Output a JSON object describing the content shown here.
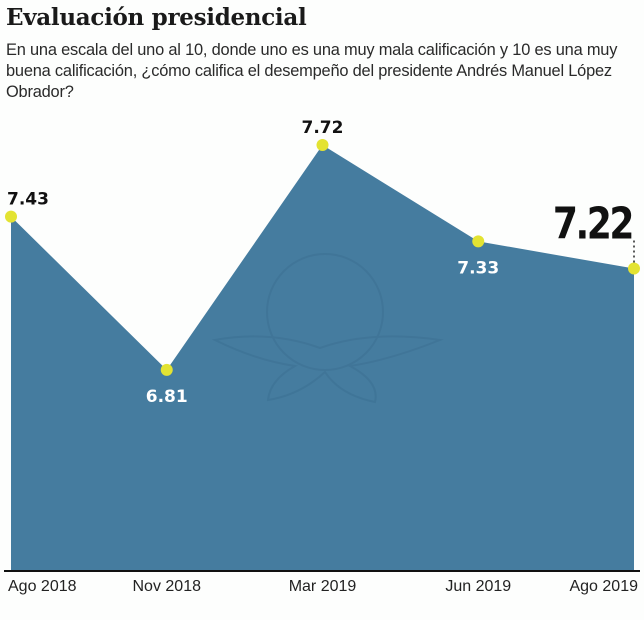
{
  "header": {
    "title": "Evaluación presidencial",
    "subtitle": "En una escala del uno al 10, donde uno es una muy mala calificación y 10 es una muy buena calificación, ¿cómo califica el desempeño del presidente Andrés Manuel López Obrador?"
  },
  "colors": {
    "area_fill": "#457c9f",
    "point": "#e3e332",
    "text_dark": "#111111",
    "text_light": "#ffffff",
    "baseline": "#111111"
  },
  "chart_data": {
    "type": "area",
    "title": "Evaluación presidencial",
    "subtitle": "En una escala del uno al 10, donde uno es una muy mala calificación y 10 es una muy buena calificación, ¿cómo califica el desempeño del presidente Andrés Manuel López Obrador?",
    "xlabel": "",
    "ylabel": "",
    "categories": [
      "Ago 2018",
      "Nov 2018",
      "Mar 2019",
      "Jun 2019",
      "Ago 2019"
    ],
    "values": [
      7.43,
      6.81,
      7.72,
      7.33,
      7.22
    ],
    "data_labels": [
      "7.43",
      "6.81",
      "7.72",
      "7.33",
      "7.22"
    ],
    "label_placement": [
      "above",
      "below",
      "above",
      "below",
      "above-highlight"
    ],
    "ylim": [
      6.0,
      7.72
    ],
    "grid": false,
    "legend": "none",
    "highlight_last": true
  }
}
